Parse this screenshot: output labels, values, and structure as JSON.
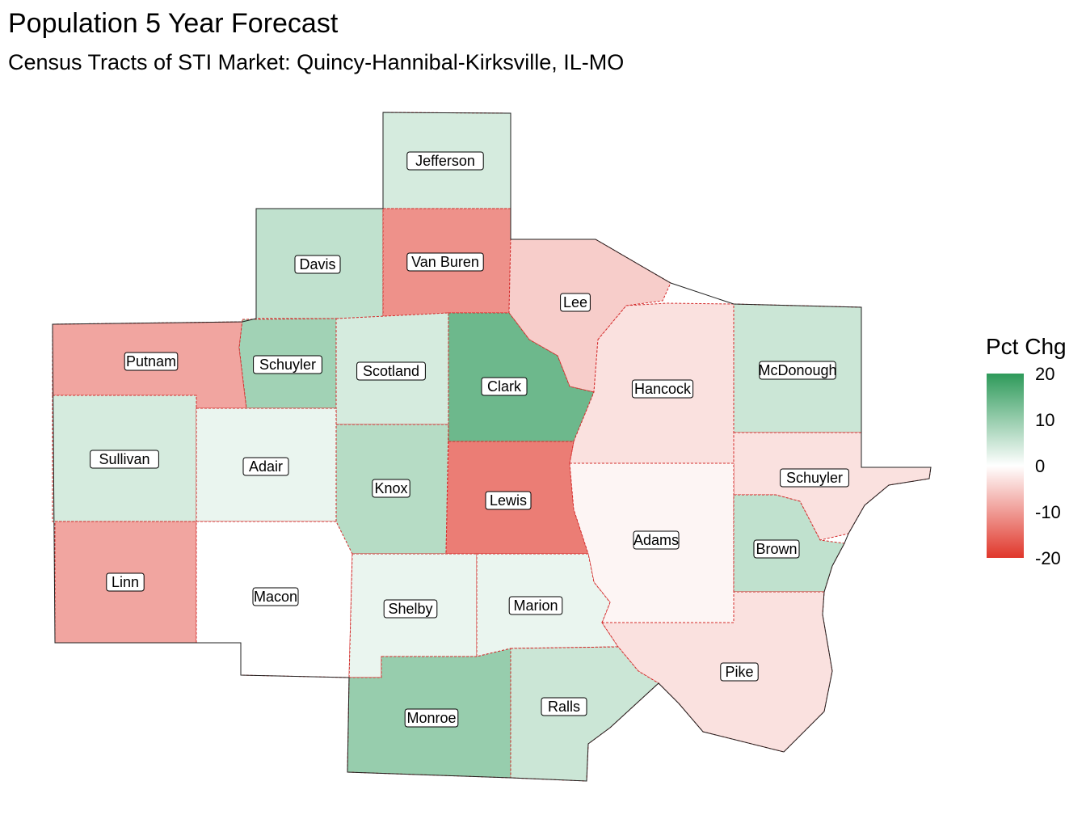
{
  "title": "Population 5 Year Forecast",
  "subtitle": "Census Tracts of STI Market: Quincy-Hannibal-Kirksville, IL-MO",
  "legend": {
    "title": "Pct Chg",
    "ticks": [
      "20",
      "10",
      "0",
      "-10",
      "-20"
    ],
    "scale_min": -20,
    "scale_max": 20,
    "color_low": "#e0372b",
    "color_mid": "#ffffff",
    "color_high": "#2e9a5a"
  },
  "counties": [
    {
      "name": "Jefferson",
      "pct_chg": 4
    },
    {
      "name": "Davis",
      "pct_chg": 6
    },
    {
      "name": "Van Buren",
      "pct_chg": -11
    },
    {
      "name": "Lee",
      "pct_chg": -5
    },
    {
      "name": "Putnam",
      "pct_chg": -9
    },
    {
      "name": "Schuyler",
      "pct_chg": 9
    },
    {
      "name": "Scotland",
      "pct_chg": 4
    },
    {
      "name": "Clark",
      "pct_chg": 14
    },
    {
      "name": "Hancock",
      "pct_chg": -3
    },
    {
      "name": "McDonough",
      "pct_chg": 5
    },
    {
      "name": "Sullivan",
      "pct_chg": 4
    },
    {
      "name": "Adair",
      "pct_chg": 2
    },
    {
      "name": "Knox",
      "pct_chg": 7
    },
    {
      "name": "Lewis",
      "pct_chg": -13
    },
    {
      "name": "Schuyler",
      "pct_chg": -3
    },
    {
      "name": "Adams",
      "pct_chg": -1
    },
    {
      "name": "Brown",
      "pct_chg": 6
    },
    {
      "name": "Linn",
      "pct_chg": -9
    },
    {
      "name": "Macon",
      "pct_chg": 0
    },
    {
      "name": "Shelby",
      "pct_chg": 2
    },
    {
      "name": "Marion",
      "pct_chg": 2
    },
    {
      "name": "Pike",
      "pct_chg": -3
    },
    {
      "name": "Monroe",
      "pct_chg": 10
    },
    {
      "name": "Ralls",
      "pct_chg": 5
    }
  ]
}
